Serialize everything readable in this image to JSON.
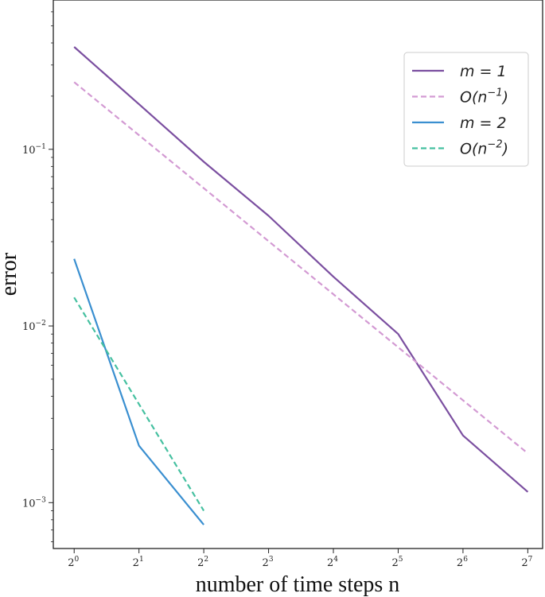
{
  "chart_data": {
    "type": "line",
    "xscale": "log2",
    "yscale": "log10",
    "x_ticks": [
      {
        "value": 1,
        "base": "2",
        "exp": "0"
      },
      {
        "value": 2,
        "base": "2",
        "exp": "1"
      },
      {
        "value": 4,
        "base": "2",
        "exp": "2"
      },
      {
        "value": 8,
        "base": "2",
        "exp": "3"
      },
      {
        "value": 16,
        "base": "2",
        "exp": "4"
      },
      {
        "value": 32,
        "base": "2",
        "exp": "5"
      },
      {
        "value": 64,
        "base": "2",
        "exp": "6"
      },
      {
        "value": 128,
        "base": "2",
        "exp": "7"
      }
    ],
    "y_ticks": [
      {
        "value": 0.1,
        "base": "10",
        "exp": "−1"
      },
      {
        "value": 0.01,
        "base": "10",
        "exp": "−2"
      },
      {
        "value": 0.001,
        "base": "10",
        "exp": "−3"
      }
    ],
    "xlabel": "number of time steps n",
    "ylabel": "error",
    "xlim": [
      0.8,
      150
    ],
    "ylim": [
      0.00055,
      0.7
    ],
    "legend_position": "upper right",
    "grid": false,
    "series": [
      {
        "name": "m = 1",
        "legend_base": "m = 1",
        "legend_sup": "",
        "legend_tail": "",
        "color": "#7b4fa0",
        "dash": "solid",
        "x": [
          1,
          2,
          4,
          8,
          16,
          32,
          64,
          128
        ],
        "y": [
          0.38,
          0.18,
          0.085,
          0.042,
          0.019,
          0.009,
          0.0024,
          0.00115
        ]
      },
      {
        "name": "O(n^-1)",
        "legend_base": "O(n",
        "legend_sup": "−1",
        "legend_tail": ")",
        "color": "#d39ad3",
        "dash": "dashed",
        "x": [
          1,
          128
        ],
        "y": [
          0.24,
          0.0019
        ]
      },
      {
        "name": "m = 2",
        "legend_base": "m = 2",
        "legend_sup": "",
        "legend_tail": "",
        "color": "#3a8fd0",
        "dash": "solid",
        "x": [
          1,
          2,
          4
        ],
        "y": [
          0.024,
          0.0021,
          0.00075
        ]
      },
      {
        "name": "O(n^-2)",
        "legend_base": "O(n",
        "legend_sup": "−2",
        "legend_tail": ")",
        "color": "#45c0a0",
        "dash": "dashed",
        "x": [
          1,
          4
        ],
        "y": [
          0.0145,
          0.0009
        ]
      }
    ]
  }
}
